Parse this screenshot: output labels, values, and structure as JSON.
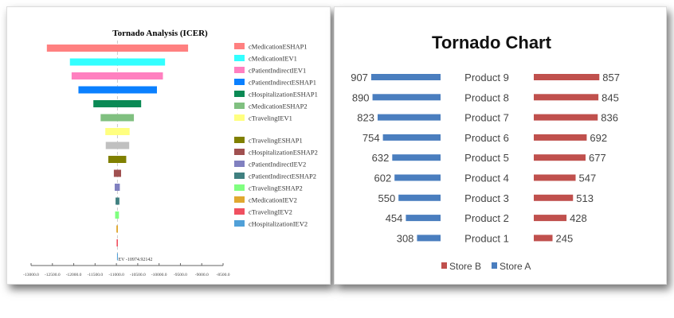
{
  "chart_data": [
    {
      "type": "bar",
      "subtype": "tornado",
      "title": "Tornado Analysis (ICER)",
      "baseline_label": "EV -10974.92142",
      "baseline": -10974.92142,
      "xlim": [
        -13000,
        -8500
      ],
      "xticks": [
        "-13000.0",
        "-12500.0",
        "-12000.0",
        "-11500.0",
        "-11000.0",
        "-10500.0",
        "-10000.0",
        "-9500.0",
        "-9000.0",
        "-8500.0"
      ],
      "xtick_values": [
        -13000,
        -12500,
        -12000,
        -11500,
        -11000,
        -10500,
        -10000,
        -9500,
        -9000,
        -8500
      ],
      "legend_position": "right",
      "series": [
        {
          "name": "cMedicationESHAP1",
          "low": -12630,
          "high": -9320,
          "color": "#ff8080"
        },
        {
          "name": "cMedicationIEV1",
          "low": -12090,
          "high": -9860,
          "color": "#33ffff"
        },
        {
          "name": "cPatientIndirectIEV1",
          "low": -12050,
          "high": -9910,
          "color": "#ff80c0"
        },
        {
          "name": "cPatientIndirectESHAP1",
          "low": -11890,
          "high": -10050,
          "color": "#0a80ff"
        },
        {
          "name": "cHospitalizationESHAP1",
          "low": -11540,
          "high": -10420,
          "color": "#0a8a55"
        },
        {
          "name": "cMedicationESHAP2",
          "low": -11370,
          "high": -10590,
          "color": "#80c080"
        },
        {
          "name": "cTravelingIEV1",
          "low": -11260,
          "high": -10690,
          "color": "#ffff80"
        },
        {
          "name": "",
          "low": -11250,
          "high": -10700,
          "color": "#c0c0c0"
        },
        {
          "name": "cTravelingESHAP1",
          "low": -11190,
          "high": -10770,
          "color": "#808000"
        },
        {
          "name": "cHospitalizationESHAP2",
          "low": -11060,
          "high": -10890,
          "color": "#a05050"
        },
        {
          "name": "cPatientIndirectIEV2",
          "low": -11040,
          "high": -10920,
          "color": "#8080c0"
        },
        {
          "name": "cPatientIndirectESHAP2",
          "low": -11020,
          "high": -10930,
          "color": "#408080"
        },
        {
          "name": "cTravelingESHAP2",
          "low": -11030,
          "high": -10940,
          "color": "#80ff80"
        },
        {
          "name": "cMedicationIEV2",
          "low": -11000,
          "high": -10965,
          "color": "#e0a830"
        },
        {
          "name": "cTravelingIEV2",
          "low": -10995,
          "high": -10965,
          "color": "#f05060"
        },
        {
          "name": "cHospitalizationIEV2",
          "low": -10985,
          "high": -10965,
          "color": "#50a0d8"
        }
      ]
    },
    {
      "type": "bar",
      "subtype": "tornado",
      "title": "Tornado Chart",
      "categories": [
        "Product 9",
        "Product 8",
        "Product 7",
        "Product 6",
        "Product 5",
        "Product 4",
        "Product 3",
        "Product 2",
        "Product 1"
      ],
      "series": [
        {
          "name": "Store A",
          "values": [
            907,
            890,
            823,
            754,
            632,
            602,
            550,
            454,
            308
          ],
          "color": "#4a7ebf",
          "side": "left"
        },
        {
          "name": "Store B",
          "values": [
            857,
            845,
            836,
            692,
            677,
            547,
            513,
            428,
            245
          ],
          "color": "#c0504d",
          "side": "right"
        }
      ],
      "legend": [
        "Store B",
        "Store A"
      ],
      "legend_position": "bottom"
    }
  ]
}
